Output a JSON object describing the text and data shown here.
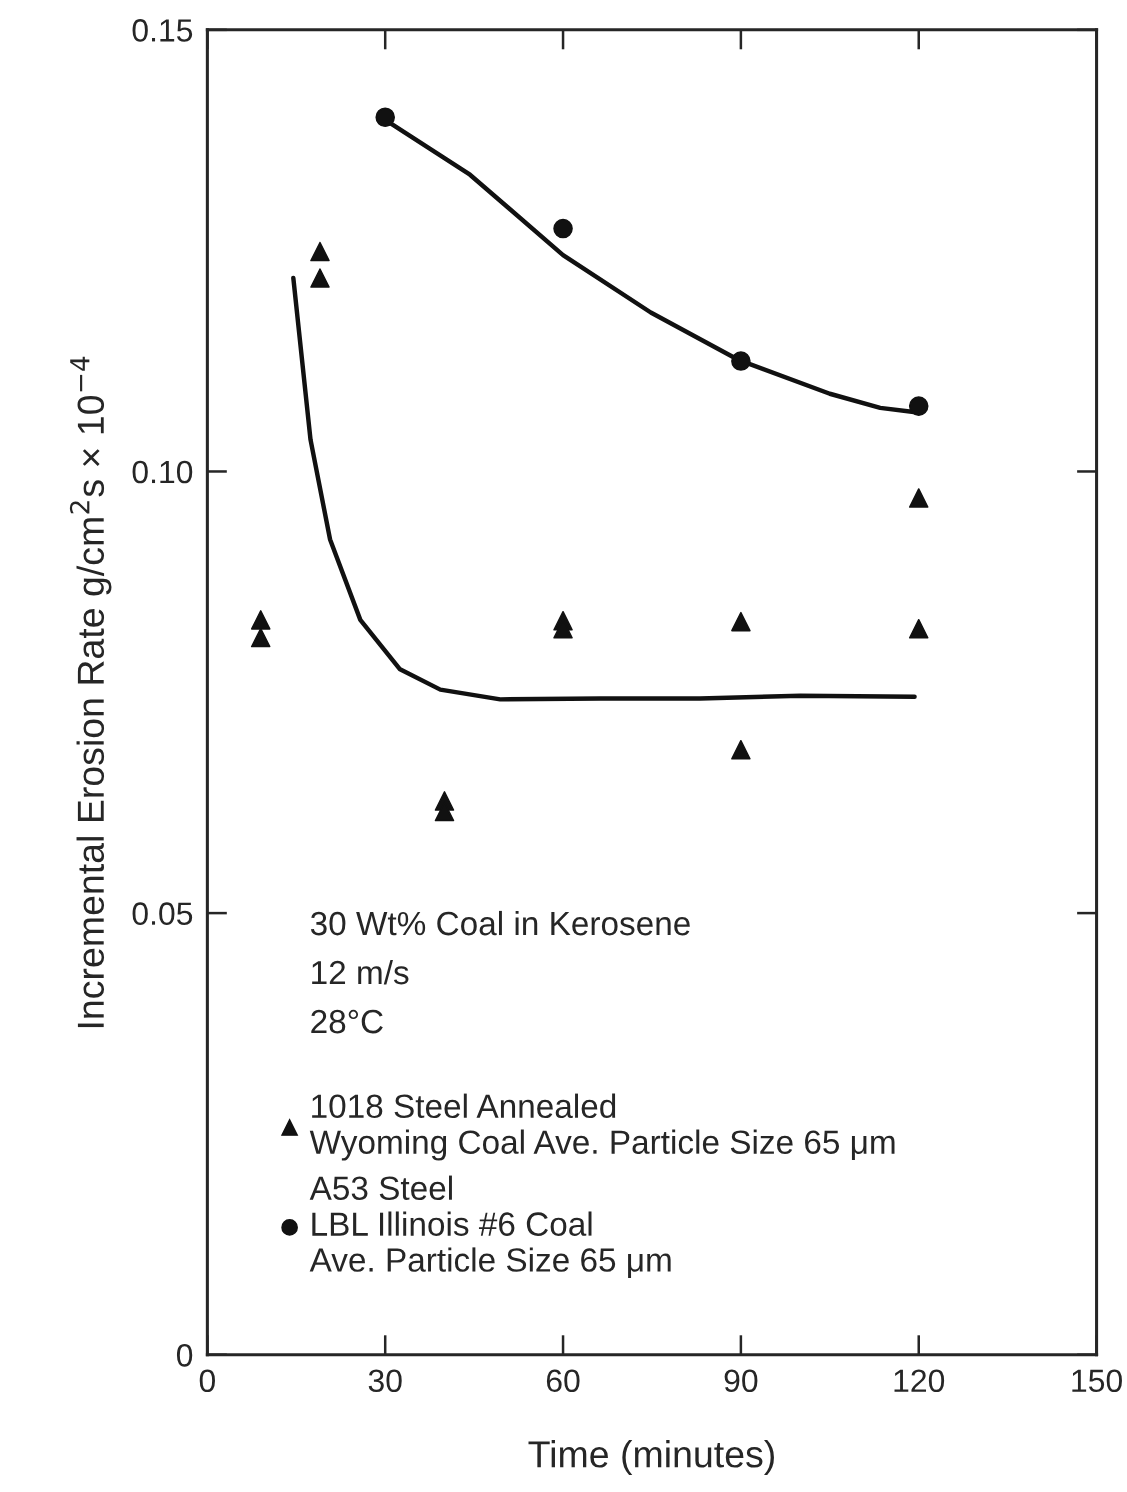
{
  "chart_data": {
    "type": "scatter",
    "xlabel": "Time (minutes)",
    "ylabel": "Incremental Erosion Rate g/cm$^{2}$s × 10$^{−4}$",
    "xlim": [
      0,
      150
    ],
    "xticks": [
      0,
      30,
      60,
      90,
      120,
      150
    ],
    "ylim": [
      0,
      0.15
    ],
    "yticks": [
      0,
      0.05,
      {
        "value": 0.1,
        "label": "0.10"
      },
      0.15
    ],
    "grid": false,
    "legend": "bottom left",
    "annotations": [
      "30 Wt% Coal in Kerosene",
      "12 m/s",
      "28°C"
    ],
    "series": [
      {
        "name": "1018 Steel Annealed\nWyoming Coal Ave. Particle Size 65 μm",
        "marker": "triangle",
        "color": "#111111",
        "x": [
          9,
          9,
          19,
          19,
          40,
          40,
          60,
          60,
          90,
          90,
          120,
          120
        ],
        "values": [
          0.0832,
          0.0812,
          0.1249,
          0.1219,
          0.0627,
          0.0615,
          0.0831,
          0.0822,
          0.083,
          0.0685,
          0.097,
          0.0822
        ]
      },
      {
        "name": "A53 Steel\nLBL Illinois #6 Coal\nAve. Particle Size 65 μm",
        "marker": "circle",
        "color": "#111111",
        "x": [
          30,
          60,
          90,
          120
        ],
        "values": [
          0.1401,
          0.1275,
          0.1125,
          0.1074
        ]
      },
      {
        "type": "line",
        "marker": "none",
        "line_style": "solid",
        "color": "#111111",
        "x": [
          14.5,
          17.4,
          20.7,
          25.8,
          32.5,
          39.3,
          49.4,
          66.3,
          83.1,
          100,
          119.3
        ],
        "values": [
          0.1219,
          0.1036,
          0.0923,
          0.0832,
          0.0776,
          0.0753,
          0.0742,
          0.0743,
          0.0743,
          0.0746,
          0.0745
        ]
      },
      {
        "type": "line",
        "marker": "none",
        "line_style": "solid",
        "color": "#111111",
        "x": [
          30,
          44.3,
          60,
          74.8,
          89.7,
          105,
          113.5,
          119.5
        ],
        "values": [
          0.1398,
          0.1336,
          0.1245,
          0.118,
          0.1126,
          0.1088,
          0.1072,
          0.1067
        ]
      }
    ]
  }
}
